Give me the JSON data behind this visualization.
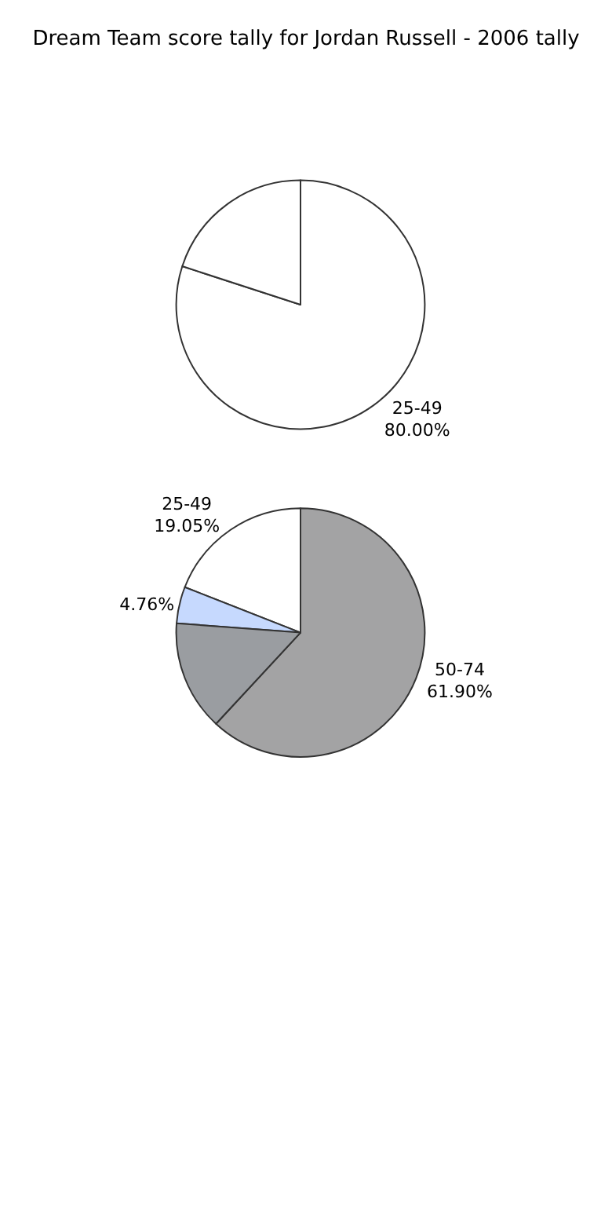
{
  "chart_data": [
    {
      "type": "pie",
      "title": "Dream Team score tally for Jordan Russell - 2006 tally",
      "categories": [
        "25-49",
        null
      ],
      "values": [
        80.0,
        20.0
      ],
      "value_labels": [
        "80.00%",
        null
      ],
      "colors": [
        "#ffffff",
        "#ffffff"
      ]
    },
    {
      "type": "pie",
      "categories": [
        "50-74",
        "25-49",
        null,
        null
      ],
      "values": [
        61.9,
        19.05,
        4.76,
        14.29
      ],
      "value_labels": [
        "61.90%",
        "19.05%",
        "4.76%",
        null
      ],
      "colors": [
        "#a3a3a4",
        "#ffffff",
        "#c6d9fe",
        "#9a9da1"
      ]
    }
  ]
}
